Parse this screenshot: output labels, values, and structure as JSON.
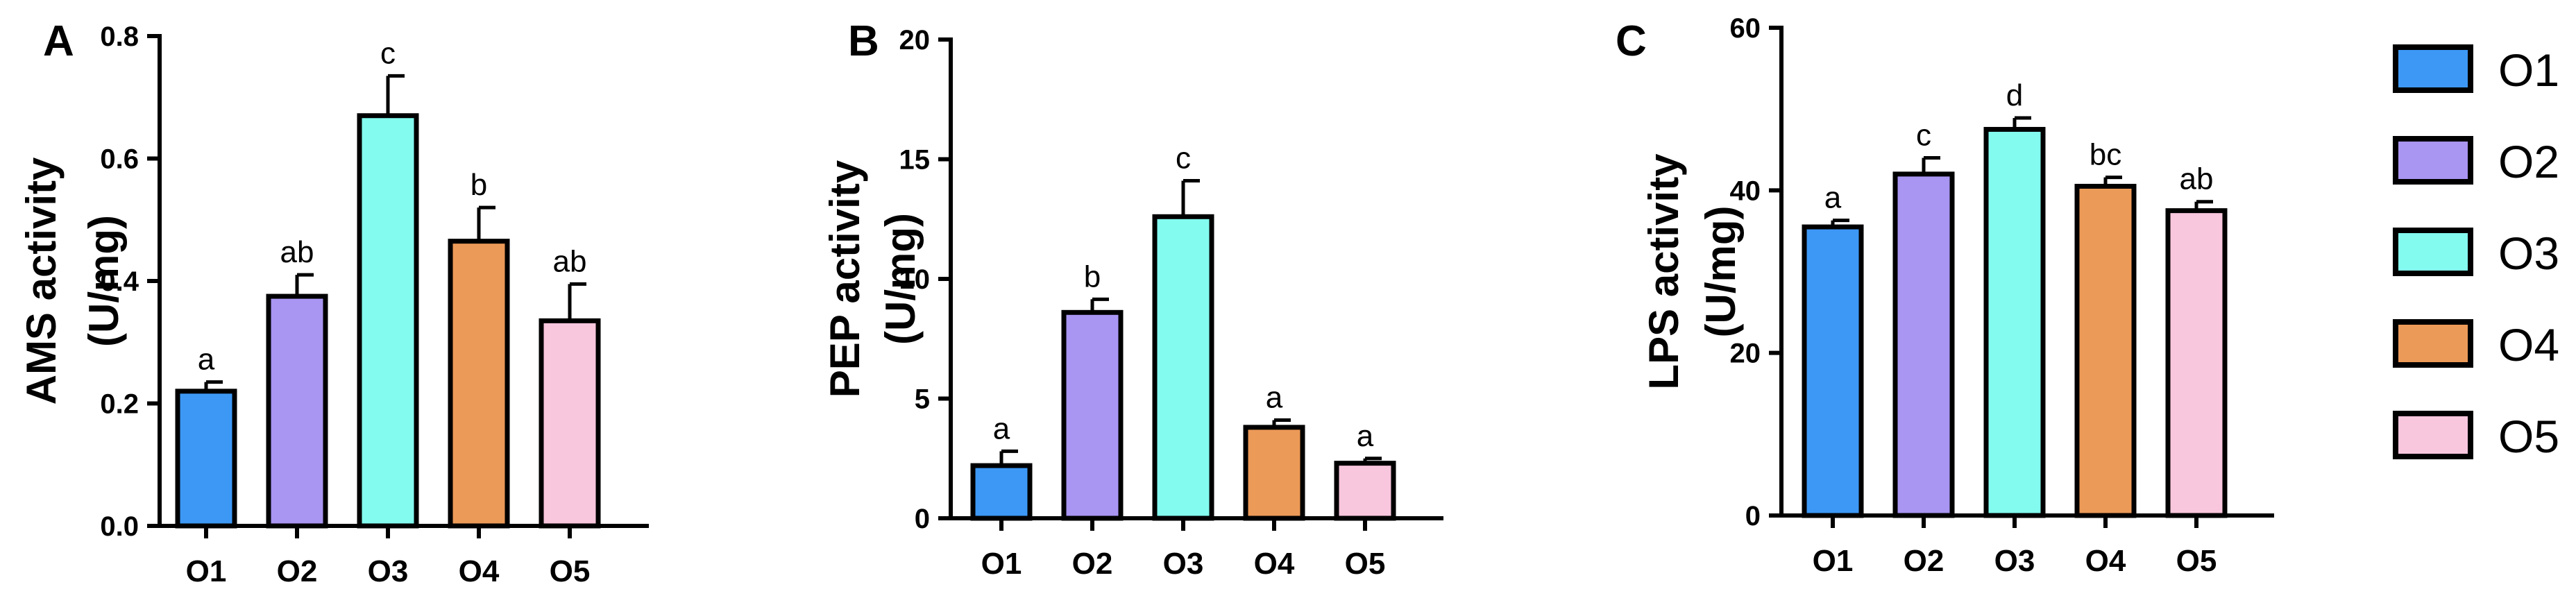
{
  "colors": {
    "O1": "#3d98f5",
    "O2": "#a995f2",
    "O3": "#84fbef",
    "O4": "#ec9a58",
    "O5": "#f8c6dd",
    "stroke": "#000000"
  },
  "legend": {
    "placement": "right",
    "items": [
      {
        "label": "O1",
        "color_key": "O1"
      },
      {
        "label": "O2",
        "color_key": "O2"
      },
      {
        "label": "O3",
        "color_key": "O3"
      },
      {
        "label": "O4",
        "color_key": "O4"
      },
      {
        "label": "O5",
        "color_key": "O5"
      }
    ]
  },
  "chart_data": [
    {
      "type": "bar",
      "panel": "A",
      "ylabel_line1": "AMS activity",
      "ylabel_line2": "(U/mg)",
      "categories": [
        "O1",
        "O2",
        "O3",
        "O4",
        "O5"
      ],
      "values": [
        0.22,
        0.375,
        0.67,
        0.465,
        0.335
      ],
      "error": [
        0.015,
        0.035,
        0.065,
        0.055,
        0.06
      ],
      "significance": [
        "a",
        "ab",
        "c",
        "b",
        "ab"
      ],
      "ylim": [
        0,
        0.8
      ],
      "yticks": [
        0.0,
        0.2,
        0.4,
        0.6,
        0.8
      ],
      "ytick_labels": [
        "0.0",
        "0.2",
        "0.4",
        "0.6",
        "0.8"
      ],
      "grid": false
    },
    {
      "type": "bar",
      "panel": "B",
      "ylabel_line1": "PEP activity",
      "ylabel_line2": "(U/mg)",
      "categories": [
        "O1",
        "O2",
        "O3",
        "O4",
        "O5"
      ],
      "values": [
        2.2,
        8.6,
        12.6,
        3.8,
        2.3
      ],
      "error": [
        0.6,
        0.55,
        1.5,
        0.3,
        0.2
      ],
      "significance": [
        "a",
        "b",
        "c",
        "a",
        "a"
      ],
      "ylim": [
        0,
        20
      ],
      "yticks": [
        0,
        5,
        10,
        15,
        20
      ],
      "ytick_labels": [
        "0",
        "5",
        "10",
        "15",
        "20"
      ],
      "grid": false
    },
    {
      "type": "bar",
      "panel": "C",
      "ylabel_line1": "LPS activity",
      "ylabel_line2": "(U/mg)",
      "categories": [
        "O1",
        "O2",
        "O3",
        "O4",
        "O5"
      ],
      "values": [
        35.5,
        42,
        47.5,
        40.5,
        37.5
      ],
      "error": [
        0.8,
        2,
        1.4,
        1.1,
        1.1
      ],
      "significance": [
        "a",
        "c",
        "d",
        "bc",
        "ab"
      ],
      "ylim": [
        0,
        60
      ],
      "yticks": [
        0,
        20,
        40,
        60
      ],
      "ytick_labels": [
        "0",
        "20",
        "40",
        "60"
      ],
      "grid": false
    }
  ]
}
